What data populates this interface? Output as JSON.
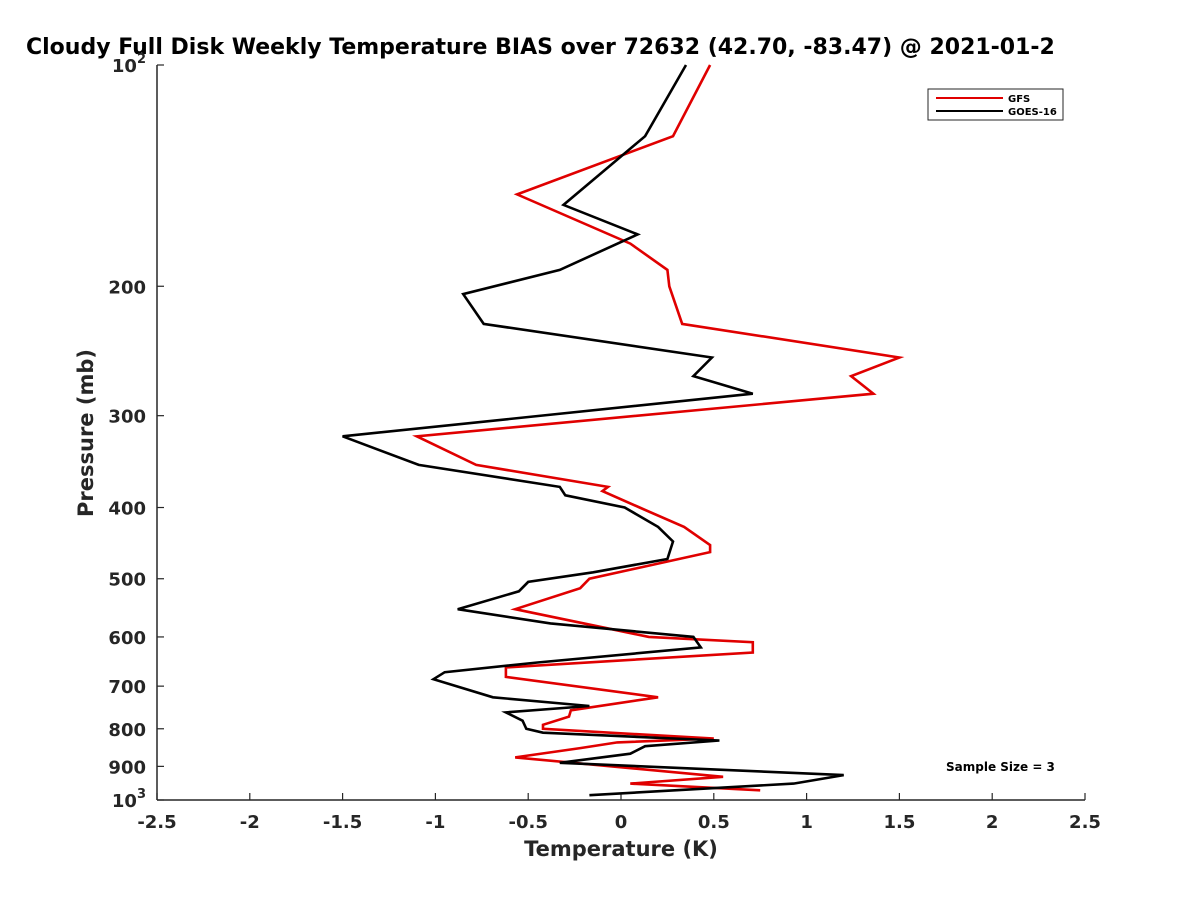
{
  "chart_data": {
    "type": "line",
    "title": "Cloudy Full Disk Weekly Temperature BIAS over 72632 (42.70, -83.47) @ 2021-01-2",
    "xlabel": "Temperature (K)",
    "ylabel": "Pressure (mb)",
    "xlim": [
      -2.5,
      2.5
    ],
    "ylim": [
      100,
      1000
    ],
    "yscale": "log",
    "y_direction": "reversed",
    "xticks": [
      -2.5,
      -2,
      -1.5,
      -1,
      -0.5,
      0,
      0.5,
      1,
      1.5,
      2,
      2.5
    ],
    "xtick_labels": [
      "-2.5",
      "-2",
      "-1.5",
      "-1",
      "-0.5",
      "0",
      "0.5",
      "1",
      "1.5",
      "2",
      "2.5"
    ],
    "yticks": [
      100,
      200,
      300,
      400,
      500,
      600,
      700,
      800,
      900,
      1000
    ],
    "ytick_labels": [
      {
        "base": "10",
        "exp": "2"
      },
      {
        "base": "200",
        "exp": ""
      },
      {
        "base": "300",
        "exp": ""
      },
      {
        "base": "400",
        "exp": ""
      },
      {
        "base": "500",
        "exp": ""
      },
      {
        "base": "600",
        "exp": ""
      },
      {
        "base": "700",
        "exp": ""
      },
      {
        "base": "800",
        "exp": ""
      },
      {
        "base": "900",
        "exp": ""
      },
      {
        "base": "10",
        "exp": "3"
      }
    ],
    "grid": false,
    "legend_position": "top-right",
    "annotation": "Sample Size = 3",
    "series": [
      {
        "name": "GFS",
        "color": "#e00000",
        "points": [
          [
            0.48,
            100
          ],
          [
            0.28,
            125
          ],
          [
            -0.56,
            150
          ],
          [
            0.05,
            175
          ],
          [
            0.25,
            190
          ],
          [
            0.26,
            200
          ],
          [
            0.33,
            225
          ],
          [
            1.5,
            250
          ],
          [
            1.24,
            265
          ],
          [
            1.36,
            280
          ],
          [
            -1.1,
            320
          ],
          [
            -0.78,
            350
          ],
          [
            -0.07,
            375
          ],
          [
            -0.1,
            380
          ],
          [
            0.1,
            400
          ],
          [
            0.34,
            425
          ],
          [
            0.48,
            450
          ],
          [
            0.48,
            460
          ],
          [
            -0.17,
            500
          ],
          [
            -0.22,
            515
          ],
          [
            -0.57,
            550
          ],
          [
            0.15,
            600
          ],
          [
            0.71,
            610
          ],
          [
            0.71,
            630
          ],
          [
            -0.62,
            660
          ],
          [
            -0.62,
            680
          ],
          [
            0.2,
            725
          ],
          [
            -0.27,
            755
          ],
          [
            -0.28,
            770
          ],
          [
            -0.42,
            790
          ],
          [
            -0.42,
            800
          ],
          [
            0.5,
            825
          ],
          [
            -0.02,
            835
          ],
          [
            -0.22,
            850
          ],
          [
            -0.57,
            875
          ],
          [
            0.55,
            930
          ],
          [
            0.05,
            950
          ],
          [
            0.75,
            970
          ]
        ]
      },
      {
        "name": "GOES-16",
        "color": "#000000",
        "points": [
          [
            0.35,
            100
          ],
          [
            0.13,
            125
          ],
          [
            -0.31,
            155
          ],
          [
            0.09,
            170
          ],
          [
            -0.33,
            190
          ],
          [
            -0.85,
            205
          ],
          [
            -0.74,
            225
          ],
          [
            0.49,
            250
          ],
          [
            0.39,
            265
          ],
          [
            0.71,
            280
          ],
          [
            -1.5,
            320
          ],
          [
            -1.09,
            350
          ],
          [
            -0.33,
            375
          ],
          [
            -0.3,
            385
          ],
          [
            0.02,
            400
          ],
          [
            0.2,
            425
          ],
          [
            0.28,
            445
          ],
          [
            0.25,
            470
          ],
          [
            -0.15,
            490
          ],
          [
            -0.5,
            505
          ],
          [
            -0.55,
            520
          ],
          [
            -0.88,
            550
          ],
          [
            -0.38,
            575
          ],
          [
            0.39,
            600
          ],
          [
            0.43,
            620
          ],
          [
            -0.45,
            650
          ],
          [
            -0.95,
            670
          ],
          [
            -1.01,
            685
          ],
          [
            -0.69,
            725
          ],
          [
            -0.17,
            745
          ],
          [
            -0.62,
            760
          ],
          [
            -0.53,
            780
          ],
          [
            -0.51,
            800
          ],
          [
            -0.42,
            810
          ],
          [
            0.53,
            830
          ],
          [
            0.13,
            845
          ],
          [
            0.05,
            865
          ],
          [
            -0.33,
            890
          ],
          [
            1.2,
            925
          ],
          [
            0.93,
            950
          ],
          [
            0.29,
            970
          ],
          [
            -0.17,
            985
          ]
        ]
      }
    ]
  }
}
